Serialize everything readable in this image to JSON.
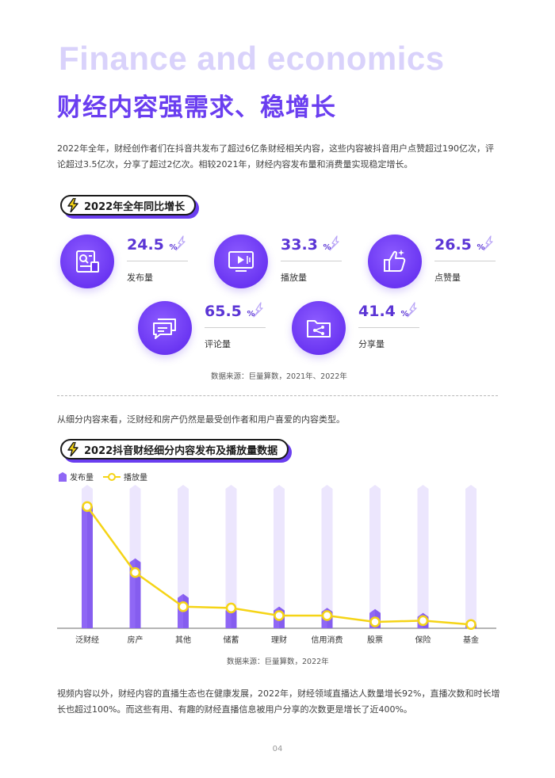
{
  "header": {
    "title_en": "Finance and economics",
    "title_zh": "财经内容强需求、稳增长"
  },
  "intro": {
    "paragraph": "2022年全年，财经创作者们在抖音共发布了超过6亿条财经相关内容，这些内容被抖音用户点赞超过190亿次，评论超过3.5亿次，分享了超过2亿次。相较2021年，财经内容发布量和消费量实现稳定增长。"
  },
  "section1": {
    "badge": "2022年全年同比增长",
    "stats": [
      {
        "value": "24.5",
        "unit": "%",
        "label": "发布量",
        "icon": "document-icon"
      },
      {
        "value": "33.3",
        "unit": "%",
        "label": "播放量",
        "icon": "video-play-icon"
      },
      {
        "value": "26.5",
        "unit": "%",
        "label": "点赞量",
        "icon": "thumbs-up-icon"
      },
      {
        "value": "65.5",
        "unit": "%",
        "label": "评论量",
        "icon": "comment-icon"
      },
      {
        "value": "41.4",
        "unit": "%",
        "label": "分享量",
        "icon": "share-folder-icon"
      }
    ],
    "source": "数据来源：巨量算数，2021年、2022年"
  },
  "section2": {
    "intro": "从细分内容来看，泛财经和房产仍然是最受创作者和用户喜爱的内容类型。",
    "badge": "2022抖音财经细分内容发布及播放量数据",
    "source": "数据来源：巨量算数，2022年"
  },
  "chart_data": {
    "type": "bar",
    "title": "2022抖音财经细分内容发布及播放量数据",
    "categories": [
      "泛财经",
      "房产",
      "其他",
      "储蓄",
      "理财",
      "信用消费",
      "股票",
      "保险",
      "基金"
    ],
    "series": [
      {
        "name": "发布量",
        "kind": "bar",
        "values": [
          96,
          52,
          24,
          14,
          14,
          13,
          12,
          9,
          3
        ]
      },
      {
        "name": "播放量",
        "kind": "line",
        "values": [
          96,
          44,
          17,
          16,
          10,
          10,
          5,
          6,
          3
        ]
      }
    ],
    "ylim": [
      0,
      110
    ],
    "xlabel": "",
    "ylabel": "",
    "legend": "top-left",
    "colors": {
      "bar": "#8f67f5",
      "track": "#ece6fd",
      "line": "#f5d416"
    }
  },
  "outro": {
    "paragraph": "视频内容以外，财经内容的直播生态也在健康发展，2022年，财经领域直播达人数量增长92%，直播次数和时长增长也超过100%。而这些有用、有趣的财经直播信息被用户分享的次数更是增长了近400%。"
  },
  "footer": {
    "page_number": "04"
  }
}
